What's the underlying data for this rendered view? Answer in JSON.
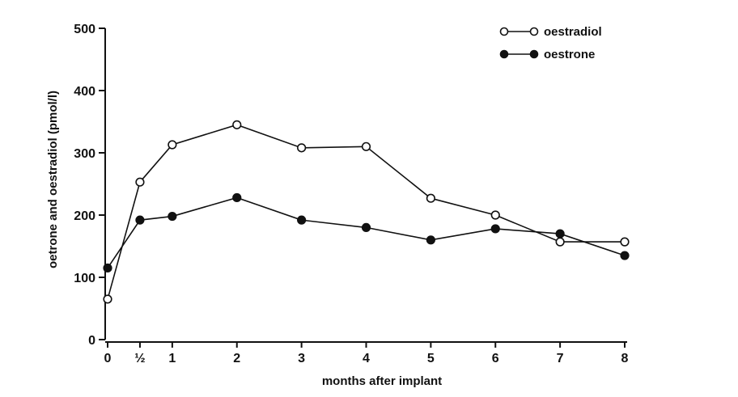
{
  "chart_data": {
    "type": "line",
    "title": "",
    "xlabel": "months after implant",
    "ylabel": "oetrone and oestradiol (pmol/l)",
    "xlim": [
      0,
      8
    ],
    "ylim": [
      0,
      500
    ],
    "x_ticks": [
      {
        "value": 0,
        "label": "0"
      },
      {
        "value": 0.5,
        "label": "½"
      },
      {
        "value": 1,
        "label": "1"
      },
      {
        "value": 2,
        "label": "2"
      },
      {
        "value": 3,
        "label": "3"
      },
      {
        "value": 4,
        "label": "4"
      },
      {
        "value": 5,
        "label": "5"
      },
      {
        "value": 6,
        "label": "6"
      },
      {
        "value": 7,
        "label": "7"
      },
      {
        "value": 8,
        "label": "8"
      }
    ],
    "y_ticks": [
      {
        "value": 0,
        "label": "0"
      },
      {
        "value": 100,
        "label": "100"
      },
      {
        "value": 200,
        "label": "200"
      },
      {
        "value": 300,
        "label": "300"
      },
      {
        "value": 400,
        "label": "400"
      },
      {
        "value": 500,
        "label": "500"
      }
    ],
    "grid": false,
    "legend_position": "top-right",
    "series": [
      {
        "name": "oestradiol",
        "marker": "open-circle",
        "color": "#111111",
        "x": [
          0,
          0.5,
          1,
          2,
          3,
          4,
          5,
          6,
          7,
          8
        ],
        "values": [
          65,
          253,
          313,
          345,
          308,
          310,
          227,
          200,
          157,
          157
        ]
      },
      {
        "name": "oestrone",
        "marker": "filled-circle",
        "color": "#111111",
        "x": [
          0,
          0.5,
          1,
          2,
          3,
          4,
          5,
          6,
          7,
          8
        ],
        "values": [
          115,
          192,
          198,
          228,
          192,
          180,
          160,
          178,
          170,
          135
        ]
      }
    ]
  }
}
